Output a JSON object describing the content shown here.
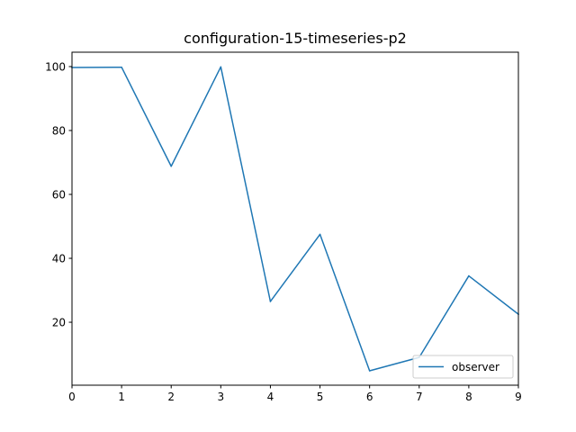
{
  "chart_data": {
    "type": "line",
    "title": "configuration-15-timeseries-p2",
    "xlabel": "",
    "ylabel": "",
    "xlim": [
      0,
      9
    ],
    "ylim": [
      0.3,
      104.5
    ],
    "x_ticks": [
      0,
      1,
      2,
      3,
      4,
      5,
      6,
      7,
      8,
      9
    ],
    "y_ticks": [
      20,
      40,
      60,
      80,
      100
    ],
    "grid": false,
    "legend_position": "lower right",
    "series": [
      {
        "name": "observer",
        "color": "#1f77b4",
        "x": [
          0,
          1,
          2,
          3,
          4,
          5,
          6,
          7,
          8,
          9
        ],
        "y": [
          99.7,
          99.8,
          68.8,
          99.9,
          26.5,
          47.5,
          4.8,
          9.0,
          34.5,
          22.5
        ]
      }
    ]
  }
}
